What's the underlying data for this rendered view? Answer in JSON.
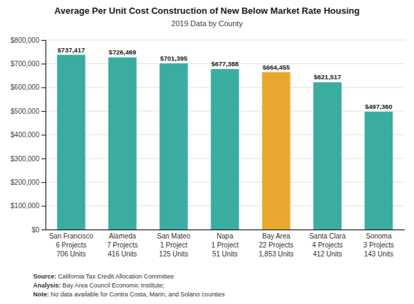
{
  "chart_data": {
    "type": "bar",
    "title": "Average Per Unit Cost Construction of New Below Market Rate Housing",
    "subtitle": "2019 Data by County",
    "categories": [
      "San Francisco\n6 Projects\n706 Units",
      "Alameda\n7 Projects\n416 Units",
      "San Mateo\n1 Project\n125 Units",
      "Napa\n1 Project\n51 Units",
      "Bay Area\n22 Projects\n1,853 Units",
      "Santa Clara\n4 Projects\n412 Units",
      "Sonoma\n3 Projects\n143 Units"
    ],
    "values": [
      737417,
      726469,
      701395,
      677388,
      664455,
      621517,
      497360
    ],
    "value_labels": [
      "$737,417",
      "$726,469",
      "$701,395",
      "$677,388",
      "$664,455",
      "$621,517",
      "$497,360"
    ],
    "data_labels": true,
    "colors": [
      "#3aada0",
      "#3aada0",
      "#3aada0",
      "#3aada0",
      "#e8a830",
      "#3aada0",
      "#3aada0"
    ],
    "ylim": [
      0,
      800000
    ],
    "yticks": [
      {
        "value": 0,
        "label": "$0"
      },
      {
        "value": 100000,
        "label": "$100,000"
      },
      {
        "value": 200000,
        "label": "$200,000"
      },
      {
        "value": 300000,
        "label": "$300,000"
      },
      {
        "value": 400000,
        "label": "$400,000"
      },
      {
        "value": 500000,
        "label": "$500,000"
      },
      {
        "value": 600000,
        "label": "$600,000"
      },
      {
        "value": 700000,
        "label": "$700,000"
      },
      {
        "value": 800000,
        "label": "$800,000"
      }
    ],
    "grid": true,
    "annotations": [
      "Source: California Tax Credit Allocation Committee",
      "Analysis: Bay Area Council Economic Institute;",
      "Note: No data available for Contra Costa, Marin, and Solano counties"
    ]
  }
}
